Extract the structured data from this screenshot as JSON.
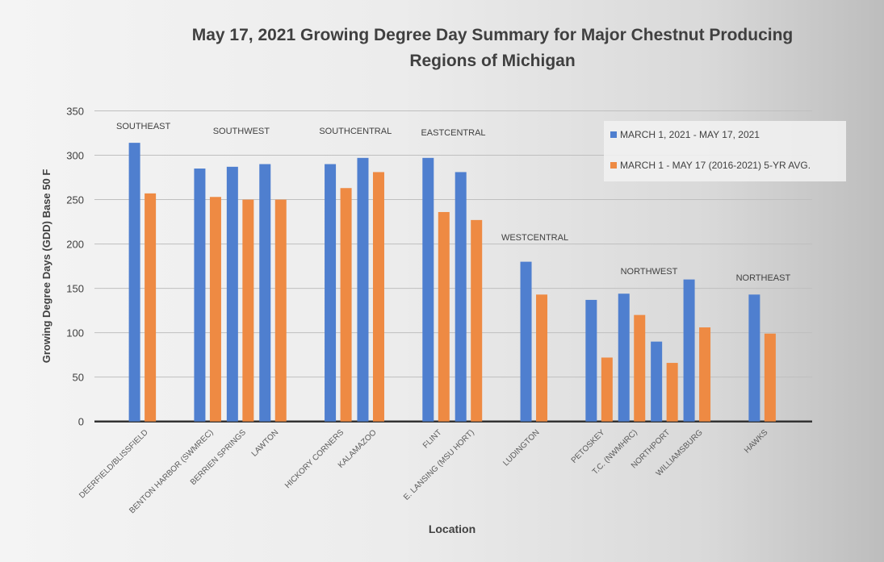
{
  "chart_data": {
    "type": "bar",
    "title": "May 17, 2021 Growing Degree Day Summary for Major Chestnut Producing Regions of Michigan",
    "title_lines": [
      "May 17, 2021 Growing Degree Day Summary for Major Chestnut Producing",
      "Regions of Michigan"
    ],
    "xlabel": "Location",
    "ylabel": "Growing Degree Days (GDD) Base 50 F",
    "ylim": [
      0,
      350
    ],
    "yticks": [
      0,
      50,
      100,
      150,
      200,
      250,
      300,
      350
    ],
    "grid": true,
    "legend_position": "top-right",
    "groups": [
      {
        "name": "SOUTHEAST",
        "categories": [
          "DEERFIELD/BLISSFIELD"
        ]
      },
      {
        "name": "SOUTHWEST",
        "categories": [
          "BENTON HARBOR (SWMREC)",
          "BERRIEN SPRINGS",
          "LAWTON"
        ]
      },
      {
        "name": "SOUTHCENTRAL",
        "categories": [
          "HICKORY CORNERS",
          "KALAMAZOO"
        ]
      },
      {
        "name": "EASTCENTRAL",
        "categories": [
          "FLINT",
          "E. LANSING (MSU HORT)"
        ]
      },
      {
        "name": "WESTCENTRAL",
        "categories": [
          "LUDINGTON"
        ]
      },
      {
        "name": "NORTHWEST",
        "categories": [
          "PETOSKEY",
          "T.C. (NWMHRC)",
          "NORTHPORT",
          "WILLIAMSBURG"
        ]
      },
      {
        "name": "NORTHEAST",
        "categories": [
          "HAWKS"
        ]
      }
    ],
    "categories": [
      "DEERFIELD/BLISSFIELD",
      "BENTON HARBOR (SWMREC)",
      "BERRIEN SPRINGS",
      "LAWTON",
      "HICKORY CORNERS",
      "KALAMAZOO",
      "FLINT",
      "E. LANSING (MSU HORT)",
      "LUDINGTON",
      "PETOSKEY",
      "T.C. (NWMHRC)",
      "NORTHPORT",
      "WILLIAMSBURG",
      "HAWKS"
    ],
    "series": [
      {
        "name": "MARCH 1, 2021 - MAY 17, 2021",
        "color": "#4f7fcf",
        "values": [
          314,
          285,
          287,
          290,
          290,
          297,
          297,
          281,
          180,
          137,
          144,
          90,
          160,
          143
        ]
      },
      {
        "name": "MARCH 1 - MAY 17 (2016-2021) 5-YR AVG.",
        "color": "#ee8a43",
        "values": [
          257,
          253,
          250,
          250,
          263,
          281,
          236,
          227,
          143,
          72,
          120,
          66,
          106,
          99
        ]
      }
    ]
  }
}
